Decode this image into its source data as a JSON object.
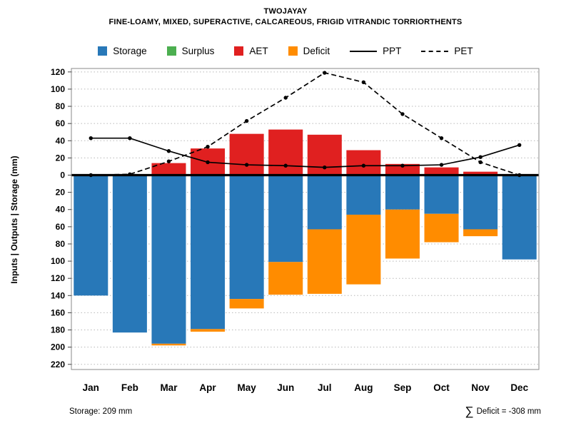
{
  "title": "TWOJAYAY",
  "subtitle": "FINE-LOAMY, MIXED, SUPERACTIVE, CALCAREOUS, FRIGID VITRANDIC TORRIORTHENTS",
  "y_axis_label": "Inputs | Outputs | Storage   (mm)",
  "footer": {
    "storage_note": "Storage: 209 mm",
    "deficit_sigma": "∑",
    "deficit_text": "Deficit = -308 mm"
  },
  "legend": {
    "items": [
      {
        "label": "Storage",
        "swatch": "box",
        "color": "#2878B8"
      },
      {
        "label": "Surplus",
        "swatch": "box",
        "color": "#4CAF50"
      },
      {
        "label": "AET",
        "swatch": "box",
        "color": "#E02020"
      },
      {
        "label": "Deficit",
        "swatch": "box",
        "color": "#FF8C00"
      },
      {
        "label": "PPT",
        "swatch": "line-solid",
        "color": "#000000"
      },
      {
        "label": "PET",
        "swatch": "line-dashed",
        "color": "#000000"
      }
    ]
  },
  "chart_data": {
    "type": "bar",
    "title": "TWOJAYAY",
    "subtitle": "FINE-LOAMY, MIXED, SUPERACTIVE, CALCAREOUS, FRIGID VITRANDIC TORRIORTHENTS",
    "ylabel": "Inputs | Outputs | Storage   (mm)",
    "categories": [
      "Jan",
      "Feb",
      "Mar",
      "Apr",
      "May",
      "Jun",
      "Jul",
      "Aug",
      "Sep",
      "Oct",
      "Nov",
      "Dec"
    ],
    "series": [
      {
        "name": "AET",
        "direction": "up",
        "color": "#E02020",
        "values": [
          0,
          0,
          14,
          31,
          48,
          53,
          47,
          29,
          13,
          9,
          4,
          0
        ]
      },
      {
        "name": "Surplus",
        "direction": "up",
        "color": "#4CAF50",
        "values": [
          0,
          0,
          0,
          0,
          0,
          0,
          0,
          0,
          0,
          0,
          0,
          0
        ]
      },
      {
        "name": "Storage",
        "direction": "down",
        "color": "#2878B8",
        "values": [
          140,
          183,
          196,
          179,
          144,
          101,
          63,
          46,
          40,
          45,
          63,
          98
        ]
      },
      {
        "name": "Deficit",
        "direction": "down",
        "color": "#FF8C00",
        "values": [
          0,
          0,
          2,
          3,
          11,
          38,
          75,
          81,
          57,
          33,
          8,
          0
        ]
      }
    ],
    "lines": [
      {
        "name": "PPT",
        "style": "solid",
        "color": "#000000",
        "values": [
          43,
          43,
          28,
          15,
          12,
          11,
          9,
          11,
          11,
          12,
          21,
          35
        ]
      },
      {
        "name": "PET",
        "style": "dashed",
        "color": "#000000",
        "values": [
          0,
          1,
          16,
          33,
          63,
          90,
          119,
          108,
          71,
          43,
          15,
          0
        ]
      }
    ],
    "ytick_max": 120,
    "ytick_min": -220,
    "ytick_step": 20,
    "ylim": [
      124,
      -226
    ],
    "grid": "horizontal-dotted",
    "legend_position": "top",
    "annotations": [
      "Storage: 209 mm",
      "∑ Deficit = -308 mm"
    ]
  }
}
